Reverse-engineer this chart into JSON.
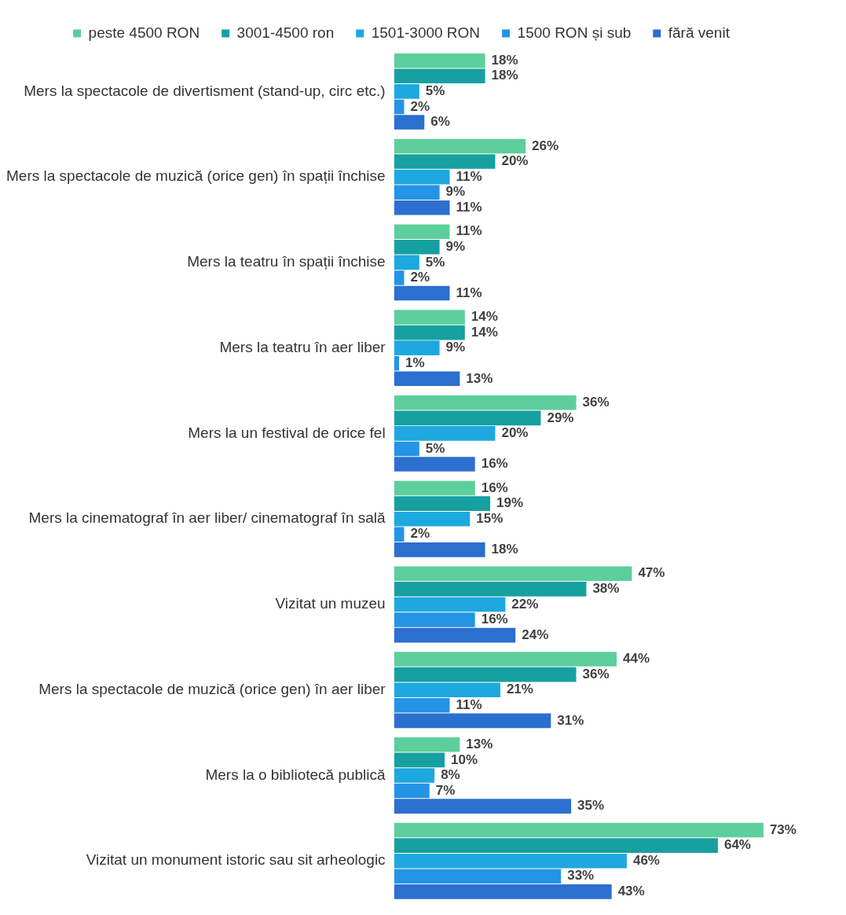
{
  "chart_data": {
    "type": "bar",
    "orientation": "horizontal",
    "legend": "top",
    "grid": false,
    "tick_labels": "y",
    "categories": [
      "Mers la spectacole de divertisment (stand-up, circ etc.)",
      "Mers la spectacole de muzică (orice gen) în spații închise",
      "Mers la teatru în spații închise",
      "Mers la teatru în aer liber",
      "Mers la un festival de orice fel",
      "Mers la cinematograf în aer liber/ cinematograf în sală",
      "Vizitat un muzeu",
      "Mers la spectacole de muzică (orice gen) în aer liber",
      "Mers la o bibliotecă publică",
      "Vizitat un monument istoric sau sit arheologic"
    ],
    "series": [
      {
        "name": "peste 4500 RON",
        "color": "#5ccf9c",
        "values": [
          18,
          26,
          11,
          14,
          36,
          16,
          47,
          44,
          13,
          73
        ],
        "value_labels": [
          "18%",
          "26%",
          "11%",
          "14%",
          "36%",
          "16%",
          "47%",
          "44%",
          "13%",
          "73%"
        ]
      },
      {
        "name": "3001-4500 ron",
        "color": "#17a0a0",
        "values": [
          18,
          20,
          9,
          14,
          29,
          19,
          38,
          36,
          10,
          64
        ],
        "value_labels": [
          "18%",
          "20%",
          "9%",
          "14%",
          "29%",
          "19%",
          "38%",
          "36%",
          "10%",
          "64%"
        ]
      },
      {
        "name": "1501-3000 RON",
        "color": "#1ea8e0",
        "values": [
          5,
          11,
          5,
          9,
          20,
          15,
          22,
          21,
          8,
          46
        ],
        "value_labels": [
          "5%",
          "11%",
          "5%",
          "9%",
          "20%",
          "15%",
          "22%",
          "21%",
          "8%",
          "46%"
        ]
      },
      {
        "name": "1500 RON și sub",
        "color": "#2494e6",
        "values": [
          2,
          9,
          2,
          1,
          5,
          2,
          16,
          11,
          7,
          33
        ],
        "value_labels": [
          "2%",
          "9%",
          "2%",
          "1%",
          "5%",
          "2%",
          "16%",
          "11%",
          "7%",
          "33%"
        ]
      },
      {
        "name": "fără venit",
        "color": "#2b6fcf",
        "values": [
          6,
          11,
          11,
          13,
          16,
          18,
          24,
          31,
          35,
          43
        ],
        "value_labels": [
          "6%",
          "11%",
          "11%",
          "13%",
          "16%",
          "18%",
          "24%",
          "31%",
          "35%",
          "43%"
        ]
      }
    ]
  }
}
